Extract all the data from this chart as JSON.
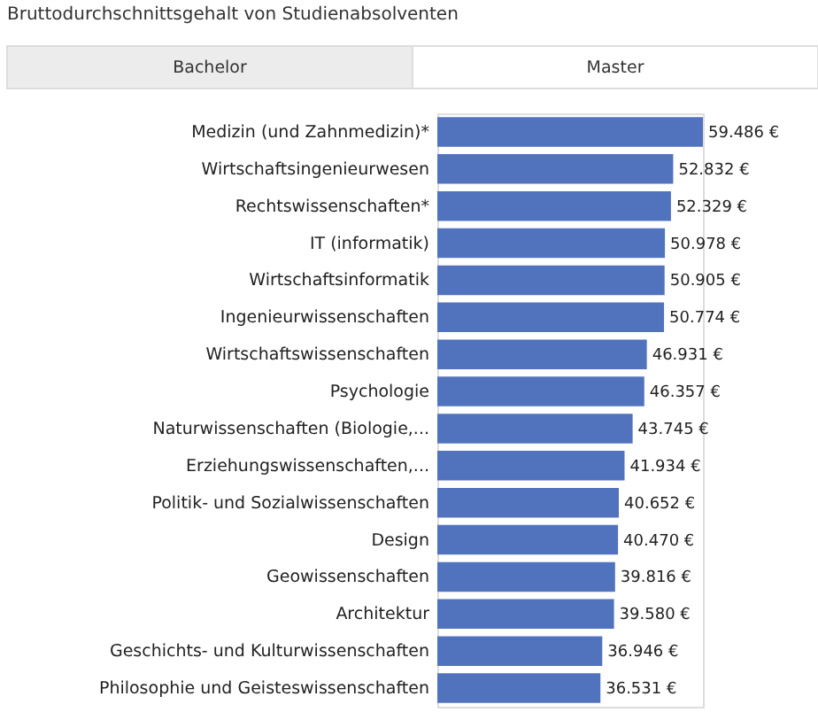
{
  "chart_data": {
    "type": "bar",
    "orientation": "horizontal",
    "title": "Bruttodurchschnittsgehalt von Studienabsolventen",
    "annotations": [
      "Bachelor",
      "Master"
    ],
    "categories": [
      "Medizin (und Zahnmedizin)*",
      "Wirtschaftsingenieurwesen",
      "Rechtswissenschaften*",
      "IT (informatik)",
      "Wirtschaftsinformatik",
      "Ingenieurwissenschaften",
      "Wirtschaftswissenschaften",
      "Psychologie",
      "Naturwissenschaften (Biologie,...",
      "Erziehungswissenschaften,...",
      "Politik- und Sozialwissenschaften",
      "Design",
      "Geowissenschaften",
      "Architektur",
      "Geschichts- und Kulturwissenschaften",
      "Philosophie und Geisteswissenschaften"
    ],
    "values": [
      59486,
      52832,
      52329,
      50978,
      50905,
      50774,
      46931,
      46357,
      43745,
      41934,
      40652,
      40470,
      39816,
      39580,
      36946,
      36531
    ],
    "value_labels": [
      "59.486 €",
      "52.832 €",
      "52.329 €",
      "50.978 €",
      "50.905 €",
      "50.774 €",
      "46.931 €",
      "46.357 €",
      "43.745 €",
      "41.934 €",
      "40.652 €",
      "40.470 €",
      "39.816 €",
      "39.580 €",
      "36.946 €",
      "36.531 €"
    ],
    "color": "#5173be",
    "data_labels": true
  }
}
